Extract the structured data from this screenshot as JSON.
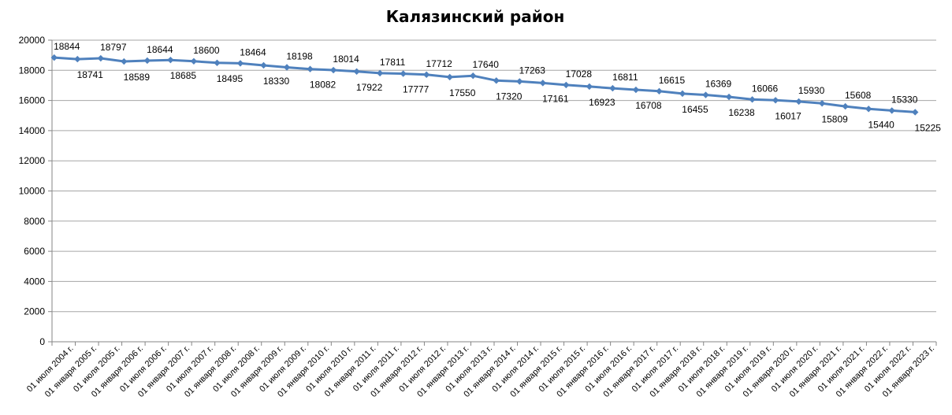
{
  "chart_data": {
    "type": "line",
    "title": "Калязинский район",
    "xlabel": "",
    "ylabel": "",
    "ylim": [
      0,
      20000
    ],
    "y_ticks": [
      "0",
      "2000",
      "4000",
      "6000",
      "8000",
      "10000",
      "12000",
      "14000",
      "16000",
      "18000",
      "20000"
    ],
    "grid": true,
    "legend": false,
    "series_color": "#4f81bd",
    "categories": [
      "01 июля 2004 г.",
      "01 января 2005 г.",
      "01 июля 2005 г.",
      "01 января 2006 г.",
      "01 июля 2006 г.",
      "01 января 2007 г.",
      "01 июля 2007 г.",
      "01 января 2008 г.",
      "01 июля 2008 г.",
      "01 января 2009 г.",
      "01 июля 2009 г.",
      "01 января 2010 г.",
      "01 июля 2010 г.",
      "01 января 2011 г.",
      "01 июля 2011 г.",
      "01 января 2012 г.",
      "01 июля 2012 г.",
      "01 января 2013 г.",
      "01 июля 2013 г.",
      "01 января 2014 г.",
      "01 июля 2014 г.",
      "01 января 2015 г.",
      "01 июля 2015 г.",
      "01 января 2016 г.",
      "01 июля 2016 г.",
      "01 января 2017 г.",
      "01 июля 2017 г.",
      "01 января 2018 г.",
      "01 июля 2018 г.",
      "01 января 2019 г.",
      "01 июля 2019 г.",
      "01 января 2020 г.",
      "01 июля 2020 г.",
      "01 января 2021 г.",
      "01 июля 2021 г.",
      "01 января 2022 г.",
      "01 июля 2022 г.",
      "01 января 2023 г."
    ],
    "values": [
      18844,
      18741,
      18797,
      18589,
      18644,
      18685,
      18600,
      18495,
      18464,
      18330,
      18198,
      18082,
      18014,
      17922,
      17811,
      17777,
      17712,
      17550,
      17640,
      17320,
      17263,
      17161,
      17028,
      16923,
      16811,
      16708,
      16615,
      16455,
      16369,
      16238,
      16066,
      16017,
      15930,
      15809,
      15608,
      15440,
      15330,
      15225
    ]
  }
}
